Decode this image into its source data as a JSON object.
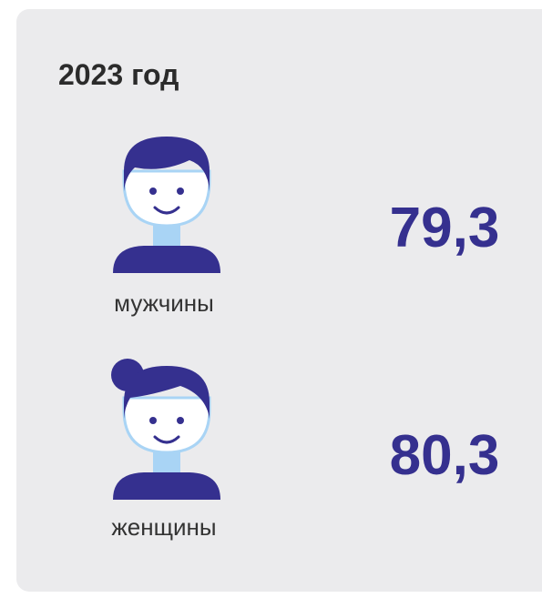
{
  "header": {
    "title": "2023 год"
  },
  "items": [
    {
      "label": "мужчины",
      "value": "79,3"
    },
    {
      "label": "женщины",
      "value": "80,3"
    }
  ]
}
